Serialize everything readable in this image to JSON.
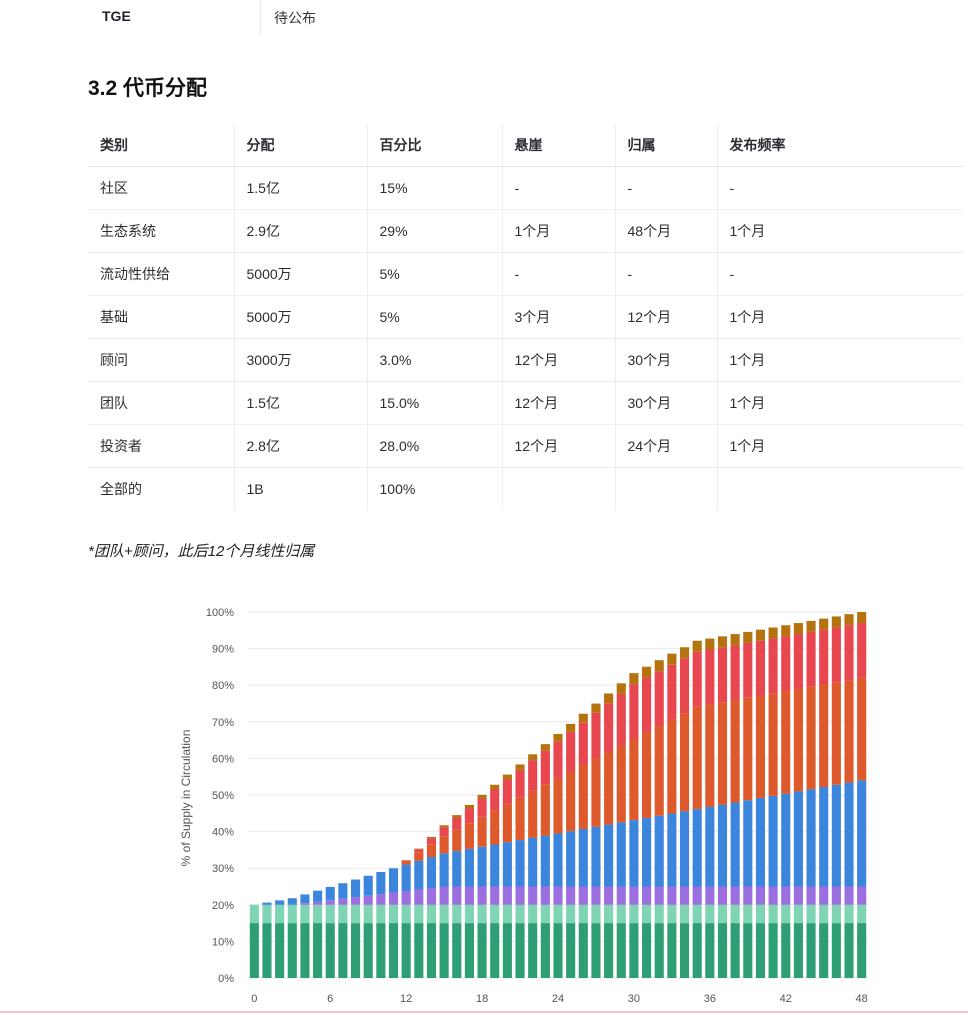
{
  "tge": {
    "key": "TGE",
    "value": "待公布"
  },
  "section_title": "3.2 代币分配",
  "table": {
    "headers": [
      "类别",
      "分配",
      "百分比",
      "悬崖",
      "归属",
      "发布频率"
    ],
    "rows": [
      [
        "社区",
        "1.5亿",
        "15%",
        "-",
        "-",
        "-"
      ],
      [
        "生态系统",
        "2.9亿",
        "29%",
        "1个月",
        "48个月",
        "1个月"
      ],
      [
        "流动性供给",
        "5000万",
        "5%",
        "-",
        "-",
        "-"
      ],
      [
        "基础",
        "5000万",
        "5%",
        "3个月",
        "12个月",
        "1个月"
      ],
      [
        "顾问",
        "3000万",
        "3.0%",
        "12个月",
        "30个月",
        "1个月"
      ],
      [
        "团队",
        "1.5亿",
        "15.0%",
        "12个月",
        "30个月",
        "1个月"
      ],
      [
        "投资者",
        "2.8亿",
        "28.0%",
        "12个月",
        "24个月",
        "1个月"
      ],
      [
        "全部的",
        "1B",
        "100%",
        "",
        "",
        ""
      ]
    ]
  },
  "note": "*团队+顾问，此后12个月线性归属",
  "chart_data": {
    "type": "bar",
    "stacked": true,
    "ylabel": "% of Supply in Circulation",
    "xlabel": "",
    "ylim": [
      0,
      100
    ],
    "y_ticks": [
      "0%",
      "10%",
      "20%",
      "30%",
      "40%",
      "50%",
      "60%",
      "70%",
      "80%",
      "90%",
      "100%"
    ],
    "x_ticks": [
      0,
      6,
      12,
      18,
      24,
      30,
      36,
      42,
      48
    ],
    "x": [
      0,
      1,
      2,
      3,
      4,
      5,
      6,
      7,
      8,
      9,
      10,
      11,
      12,
      13,
      14,
      15,
      16,
      17,
      18,
      19,
      20,
      21,
      22,
      23,
      24,
      25,
      26,
      27,
      28,
      29,
      30,
      31,
      32,
      33,
      34,
      35,
      36,
      37,
      38,
      39,
      40,
      41,
      42,
      43,
      44,
      45,
      46,
      47,
      48
    ],
    "grid": true,
    "legend": "none",
    "series": [
      {
        "color": "#2e9e74",
        "values": [
          15,
          15,
          15,
          15,
          15,
          15,
          15,
          15,
          15,
          15,
          15,
          15,
          15,
          15,
          15,
          15,
          15,
          15,
          15,
          15,
          15,
          15,
          15,
          15,
          15,
          15,
          15,
          15,
          15,
          15,
          15,
          15,
          15,
          15,
          15,
          15,
          15,
          15,
          15,
          15,
          15,
          15,
          15,
          15,
          15,
          15,
          15,
          15,
          15
        ]
      },
      {
        "color": "#7fd4b4",
        "values": [
          5,
          5,
          5,
          5,
          5,
          5,
          5,
          5,
          5,
          5,
          5,
          5,
          5,
          5,
          5,
          5,
          5,
          5,
          5,
          5,
          5,
          5,
          5,
          5,
          5,
          5,
          5,
          5,
          5,
          5,
          5,
          5,
          5,
          5,
          5,
          5,
          5,
          5,
          5,
          5,
          5,
          5,
          5,
          5,
          5,
          5,
          5,
          5,
          5
        ]
      },
      {
        "color": "#9b6fe0",
        "values": [
          0,
          0,
          0,
          0,
          0.42,
          0.83,
          1.25,
          1.67,
          2.08,
          2.5,
          2.92,
          3.33,
          3.75,
          4.17,
          4.58,
          5,
          5,
          5,
          5,
          5,
          5,
          5,
          5,
          5,
          5,
          5,
          5,
          5,
          5,
          5,
          5,
          5,
          5,
          5,
          5,
          5,
          5,
          5,
          5,
          5,
          5,
          5,
          5,
          5,
          5,
          5,
          5,
          5,
          5
        ]
      },
      {
        "color": "#3b86dc",
        "values": [
          0,
          0.6,
          1.21,
          1.81,
          2.42,
          3.02,
          3.63,
          4.23,
          4.83,
          5.44,
          6.04,
          6.65,
          7.25,
          7.85,
          8.46,
          9.06,
          9.67,
          10.27,
          10.88,
          11.48,
          12.08,
          12.69,
          13.29,
          13.9,
          14.5,
          15.1,
          15.71,
          16.31,
          16.92,
          17.52,
          18.13,
          18.73,
          19.33,
          19.94,
          20.54,
          21.15,
          21.75,
          22.35,
          22.96,
          23.56,
          24.17,
          24.77,
          25.38,
          25.98,
          26.58,
          27.19,
          27.79,
          28.4,
          29
        ]
      },
      {
        "color": "#de5a2c",
        "values": [
          0,
          0,
          0,
          0,
          0,
          0,
          0,
          0,
          0,
          0,
          0,
          0,
          1.17,
          2.33,
          3.5,
          4.67,
          5.83,
          7,
          8.17,
          9.33,
          10.5,
          11.67,
          12.83,
          14,
          15.17,
          16.33,
          17.5,
          18.67,
          19.83,
          21,
          22.17,
          23.33,
          24.5,
          25.67,
          26.83,
          28,
          28,
          28,
          28,
          28,
          28,
          28,
          28,
          28,
          28,
          28,
          28,
          28,
          28
        ]
      },
      {
        "color": "#e8474f",
        "values": [
          0,
          0,
          0,
          0,
          0,
          0,
          0,
          0,
          0,
          0,
          0,
          0,
          0,
          0.83,
          1.67,
          2.5,
          3.33,
          4.17,
          5,
          5.83,
          6.67,
          7.5,
          8.33,
          9.17,
          10,
          10.83,
          11.67,
          12.5,
          13.33,
          14.17,
          15,
          15,
          15,
          15,
          15,
          15,
          15,
          15,
          15,
          15,
          15,
          15,
          15,
          15,
          15,
          15,
          15,
          15,
          15
        ]
      },
      {
        "color": "#b4730f",
        "values": [
          0,
          0,
          0,
          0,
          0,
          0,
          0,
          0,
          0,
          0,
          0,
          0,
          0,
          0.17,
          0.33,
          0.5,
          0.67,
          0.83,
          1,
          1.17,
          1.33,
          1.5,
          1.67,
          1.83,
          2,
          2.17,
          2.33,
          2.5,
          2.67,
          2.83,
          3,
          3,
          3,
          3,
          3,
          3,
          3,
          3,
          3,
          3,
          3,
          3,
          3,
          3,
          3,
          3,
          3,
          3,
          3
        ]
      }
    ]
  }
}
